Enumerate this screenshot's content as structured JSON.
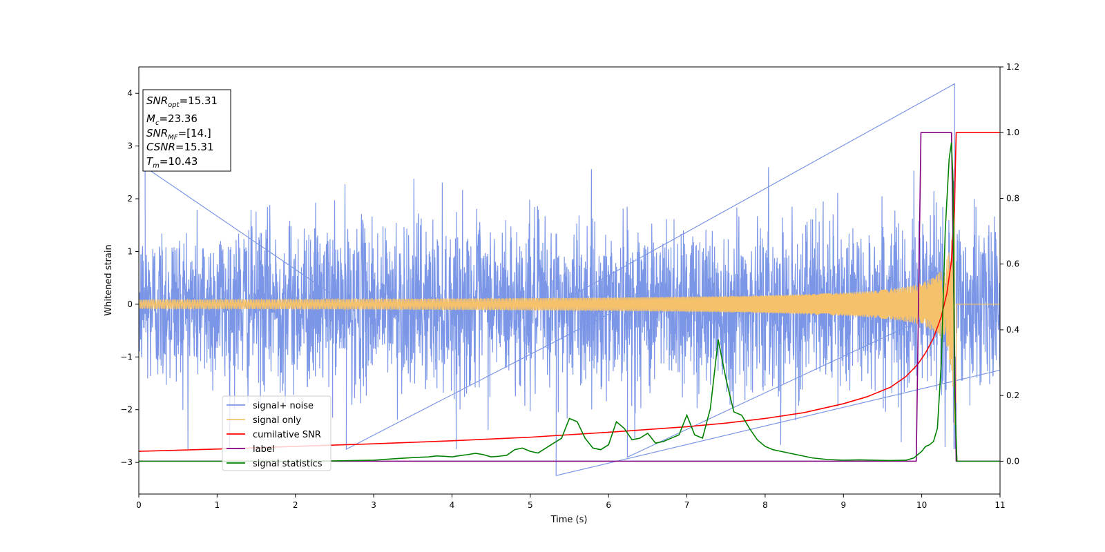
{
  "chart_data": {
    "type": "line",
    "title": "",
    "xlabel": "Time (s)",
    "ylabel": "Whitened strain",
    "xlim": [
      0,
      11
    ],
    "ylim_left": [
      -3.6,
      4.5
    ],
    "ylim_right": [
      -0.1,
      1.2
    ],
    "x_ticks": [
      "0",
      "1",
      "2",
      "3",
      "4",
      "5",
      "6",
      "7",
      "8",
      "9",
      "10",
      "11"
    ],
    "y_ticks_left": [
      "−3",
      "−2",
      "−1",
      "0",
      "1",
      "2",
      "3",
      "4"
    ],
    "y_ticks_right": [
      "0.0",
      "0.2",
      "0.4",
      "0.6",
      "0.8",
      "1.0",
      "1.2"
    ],
    "grid": false,
    "legend_position": "lower-left",
    "info_box": {
      "lines": [
        {
          "base": "SNR",
          "sub": "opt",
          "value": "=15.31"
        },
        {
          "base": "M",
          "sub": "c",
          "value": "=23.36"
        },
        {
          "base": "SNR",
          "sub": "MF",
          "value": "=[14.]"
        },
        {
          "base": "CSNR",
          "sub": "",
          "value": "=15.31"
        },
        {
          "base": "T",
          "sub": "m",
          "value": "=10.43"
        }
      ]
    },
    "series": [
      {
        "name": "signal+ noise",
        "axis": "left",
        "color": "#7b96e6",
        "style": "noise",
        "sigma": 0.78,
        "note_range": [
          -3.25,
          4.18
        ],
        "spikes": [
          [
            5.33,
            -3.25
          ],
          [
            10.42,
            4.18
          ],
          [
            6.24,
            -2.9
          ],
          [
            2.65,
            -2.75
          ],
          [
            0.08,
            2.6
          ]
        ]
      },
      {
        "name": "signal only",
        "axis": "left",
        "color": "#f5c26b",
        "style": "chirp",
        "merger_time": 10.43,
        "peak_amplitude": 3.1
      },
      {
        "name": "cumilative SNR",
        "axis": "right",
        "color": "#ff0000",
        "x": [
          0,
          1,
          2,
          3,
          4,
          5,
          6,
          7,
          7.5,
          8,
          8.5,
          9,
          9.3,
          9.6,
          9.8,
          9.95,
          10.05,
          10.15,
          10.25,
          10.32,
          10.38,
          10.42,
          10.43,
          10.44,
          11
        ],
        "y": [
          0.03,
          0.037,
          0.045,
          0.053,
          0.062,
          0.073,
          0.088,
          0.105,
          0.116,
          0.13,
          0.148,
          0.175,
          0.196,
          0.225,
          0.258,
          0.295,
          0.33,
          0.375,
          0.44,
          0.51,
          0.61,
          0.78,
          0.9,
          1.0,
          1.0
        ]
      },
      {
        "name": "label",
        "axis": "right",
        "color": "#800080",
        "x": [
          0,
          9.93,
          9.99,
          10.38,
          10.44,
          11
        ],
        "y": [
          0,
          0,
          1,
          1,
          0,
          0
        ]
      },
      {
        "name": "signal statistics",
        "axis": "right",
        "color": "#008000",
        "x": [
          0,
          1,
          2,
          2.5,
          3,
          3.3,
          3.5,
          3.7,
          3.8,
          3.9,
          4.0,
          4.1,
          4.2,
          4.3,
          4.4,
          4.5,
          4.6,
          4.7,
          4.8,
          4.9,
          5.0,
          5.1,
          5.2,
          5.3,
          5.4,
          5.5,
          5.6,
          5.7,
          5.8,
          5.9,
          6.0,
          6.1,
          6.2,
          6.3,
          6.4,
          6.5,
          6.6,
          6.7,
          6.8,
          6.9,
          7.0,
          7.1,
          7.2,
          7.3,
          7.4,
          7.5,
          7.6,
          7.7,
          7.8,
          7.9,
          8.0,
          8.1,
          8.2,
          8.3,
          8.4,
          8.6,
          8.8,
          9.0,
          9.2,
          9.4,
          9.6,
          9.8,
          9.9,
          10.0,
          10.05,
          10.1,
          10.15,
          10.2,
          10.25,
          10.3,
          10.35,
          10.38,
          10.4,
          10.42,
          10.45,
          10.5,
          11
        ],
        "y": [
          0.0,
          0.0,
          0.0,
          0.001,
          0.003,
          0.008,
          0.011,
          0.013,
          0.016,
          0.015,
          0.013,
          0.017,
          0.02,
          0.024,
          0.02,
          0.013,
          0.015,
          0.018,
          0.035,
          0.04,
          0.03,
          0.025,
          0.04,
          0.055,
          0.07,
          0.13,
          0.12,
          0.07,
          0.04,
          0.035,
          0.05,
          0.12,
          0.1,
          0.065,
          0.07,
          0.085,
          0.055,
          0.06,
          0.07,
          0.08,
          0.14,
          0.08,
          0.07,
          0.16,
          0.37,
          0.25,
          0.15,
          0.14,
          0.1,
          0.065,
          0.045,
          0.035,
          0.03,
          0.025,
          0.02,
          0.01,
          0.005,
          0.003,
          0.004,
          0.003,
          0.002,
          0.003,
          0.01,
          0.03,
          0.045,
          0.05,
          0.06,
          0.1,
          0.3,
          0.7,
          0.92,
          0.97,
          0.85,
          0.2,
          0.0,
          0.0,
          0.0
        ]
      }
    ]
  }
}
